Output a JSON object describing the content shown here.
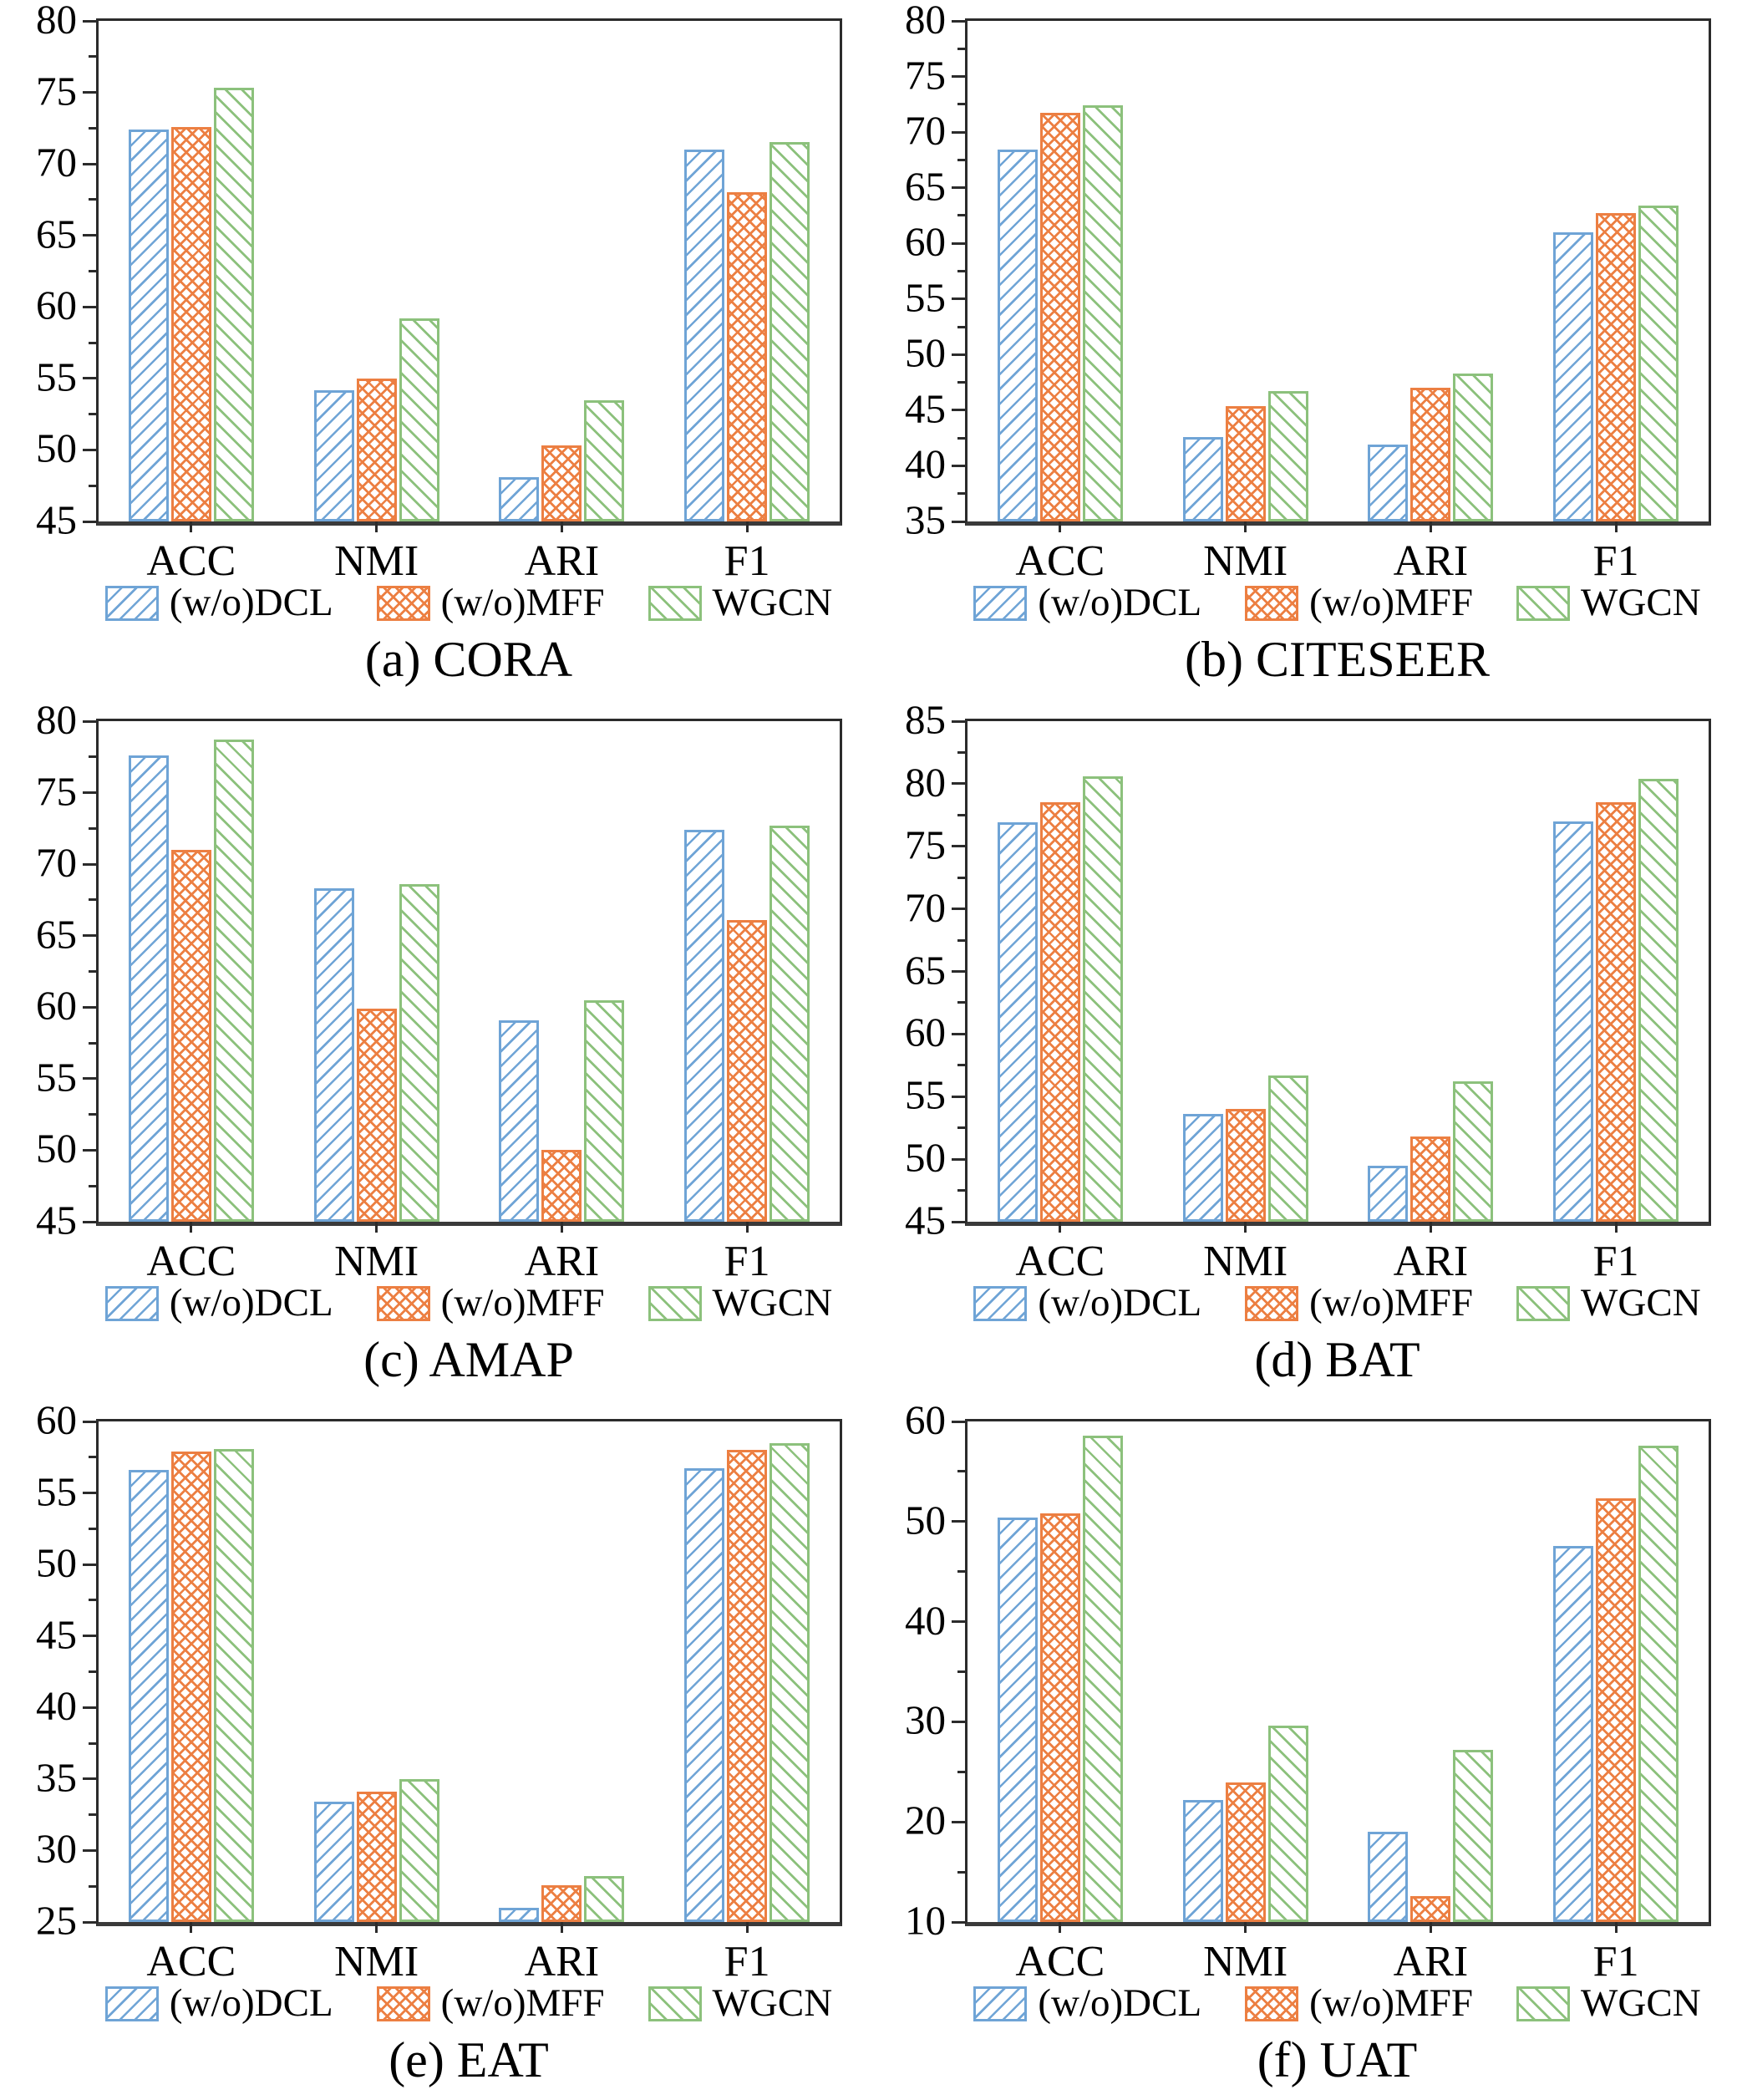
{
  "figure": {
    "colors": {
      "dcl": "#6FA4D6",
      "mff": "#EC7F42",
      "wgcn": "#8CC17C"
    },
    "axis_color": "#2b2b2b",
    "legend": [
      {
        "series": "dcl",
        "label": "(w/o)DCL",
        "hatch": "/"
      },
      {
        "series": "mff",
        "label": "(w/o)MFF",
        "hatch": "x"
      },
      {
        "series": "wgcn",
        "label": "WGCN",
        "hatch": "\\"
      }
    ]
  },
  "chart_data": [
    {
      "type": "bar",
      "caption": "(a) CORA",
      "categories": [
        "ACC",
        "NMI",
        "ARI",
        "F1"
      ],
      "series": [
        {
          "name": "(w/o)DCL",
          "key": "dcl",
          "values": [
            72.4,
            54.2,
            48.1,
            71.0
          ]
        },
        {
          "name": "(w/o)MFF",
          "key": "mff",
          "values": [
            72.6,
            55.0,
            50.3,
            68.0
          ]
        },
        {
          "name": "WGCN",
          "key": "wgcn",
          "values": [
            75.3,
            59.2,
            53.5,
            71.5
          ]
        }
      ],
      "ylim": [
        45,
        80
      ],
      "ytick_step": 5,
      "yminor_step": 2.5,
      "grid": false,
      "legend_position": "bottom"
    },
    {
      "type": "bar",
      "caption": "(b) CITESEER",
      "categories": [
        "ACC",
        "NMI",
        "ARI",
        "F1"
      ],
      "series": [
        {
          "name": "(w/o)DCL",
          "key": "dcl",
          "values": [
            68.4,
            42.6,
            41.9,
            61.0
          ]
        },
        {
          "name": "(w/o)MFF",
          "key": "mff",
          "values": [
            71.7,
            45.4,
            47.0,
            62.7
          ]
        },
        {
          "name": "WGCN",
          "key": "wgcn",
          "values": [
            72.4,
            46.7,
            48.3,
            63.4
          ]
        }
      ],
      "ylim": [
        35,
        80
      ],
      "ytick_step": 5,
      "yminor_step": 2.5,
      "grid": false,
      "legend_position": "bottom"
    },
    {
      "type": "bar",
      "caption": "(c) AMAP",
      "categories": [
        "ACC",
        "NMI",
        "ARI",
        "F1"
      ],
      "series": [
        {
          "name": "(w/o)DCL",
          "key": "dcl",
          "values": [
            77.6,
            68.3,
            59.1,
            72.4
          ]
        },
        {
          "name": "(w/o)MFF",
          "key": "mff",
          "values": [
            71.0,
            59.9,
            50.0,
            66.1
          ]
        },
        {
          "name": "WGCN",
          "key": "wgcn",
          "values": [
            78.7,
            68.6,
            60.5,
            72.7
          ]
        }
      ],
      "ylim": [
        45,
        80
      ],
      "ytick_step": 5,
      "yminor_step": 2.5,
      "grid": false,
      "legend_position": "bottom"
    },
    {
      "type": "bar",
      "caption": "(d) BAT",
      "categories": [
        "ACC",
        "NMI",
        "ARI",
        "F1"
      ],
      "series": [
        {
          "name": "(w/o)DCL",
          "key": "dcl",
          "values": [
            76.9,
            53.6,
            49.5,
            77.0
          ]
        },
        {
          "name": "(w/o)MFF",
          "key": "mff",
          "values": [
            78.5,
            54.0,
            51.8,
            78.5
          ]
        },
        {
          "name": "WGCN",
          "key": "wgcn",
          "values": [
            80.6,
            56.7,
            56.2,
            80.4
          ]
        }
      ],
      "ylim": [
        45,
        85
      ],
      "ytick_step": 5,
      "yminor_step": 2.5,
      "grid": false,
      "legend_position": "bottom"
    },
    {
      "type": "bar",
      "caption": "(e) EAT",
      "categories": [
        "ACC",
        "NMI",
        "ARI",
        "F1"
      ],
      "series": [
        {
          "name": "(w/o)DCL",
          "key": "dcl",
          "values": [
            56.6,
            33.4,
            26.0,
            56.7
          ]
        },
        {
          "name": "(w/o)MFF",
          "key": "mff",
          "values": [
            57.9,
            34.1,
            27.6,
            58.0
          ]
        },
        {
          "name": "WGCN",
          "key": "wgcn",
          "values": [
            58.1,
            35.0,
            28.2,
            58.5
          ]
        }
      ],
      "ylim": [
        25,
        60
      ],
      "ytick_step": 5,
      "yminor_step": 2.5,
      "grid": false,
      "legend_position": "bottom"
    },
    {
      "type": "bar",
      "caption": "(f) UAT",
      "categories": [
        "ACC",
        "NMI",
        "ARI",
        "F1"
      ],
      "series": [
        {
          "name": "(w/o)DCL",
          "key": "dcl",
          "values": [
            50.4,
            22.2,
            19.0,
            47.6
          ]
        },
        {
          "name": "(w/o)MFF",
          "key": "mff",
          "values": [
            50.8,
            23.9,
            12.6,
            52.3
          ]
        },
        {
          "name": "WGCN",
          "key": "wgcn",
          "values": [
            58.6,
            29.6,
            27.2,
            57.6
          ]
        }
      ],
      "ylim": [
        10,
        60
      ],
      "ytick_step": 10,
      "yminor_step": 5,
      "grid": false,
      "legend_position": "bottom"
    }
  ]
}
